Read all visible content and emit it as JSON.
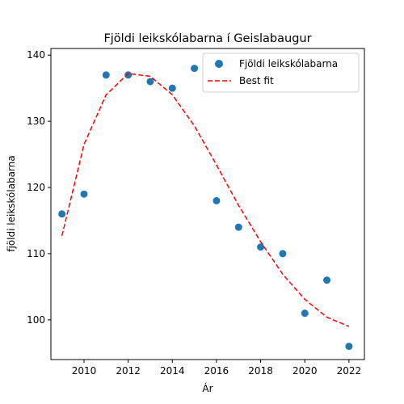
{
  "chart_data": {
    "type": "scatter",
    "title": "Fjöldi leikskólabarna í Geislabaugur",
    "xlabel": "Ár",
    "ylabel": "fjöldi leikskólabarna",
    "xlim": [
      2008.5,
      2022.7
    ],
    "ylim": [
      94,
      141
    ],
    "xticks": [
      2010,
      2012,
      2014,
      2016,
      2018,
      2020,
      2022
    ],
    "yticks": [
      100,
      110,
      120,
      130,
      140
    ],
    "grid": false,
    "legend_position": "top-right",
    "series": [
      {
        "name": "Fjöldi leikskólabarna",
        "type": "scatter",
        "color": "#1f77b4",
        "x": [
          2009,
          2010,
          2011,
          2012,
          2013,
          2014,
          2015,
          2016,
          2017,
          2018,
          2019,
          2020,
          2021,
          2022
        ],
        "y": [
          116,
          119,
          137,
          137,
          136,
          135,
          138,
          118,
          114,
          111,
          110,
          101,
          106,
          96
        ]
      },
      {
        "name": "Best fit",
        "type": "line",
        "style": "dashed",
        "color": "#ff0000",
        "x": [
          2009,
          2010,
          2011,
          2012,
          2013,
          2014,
          2015,
          2016,
          2017,
          2018,
          2019,
          2020,
          2021,
          2022
        ],
        "y": [
          112.7,
          126.5,
          134.0,
          137.2,
          136.8,
          134.0,
          129.3,
          123.4,
          117.3,
          111.8,
          106.9,
          103.1,
          100.4,
          99.0
        ]
      }
    ]
  }
}
